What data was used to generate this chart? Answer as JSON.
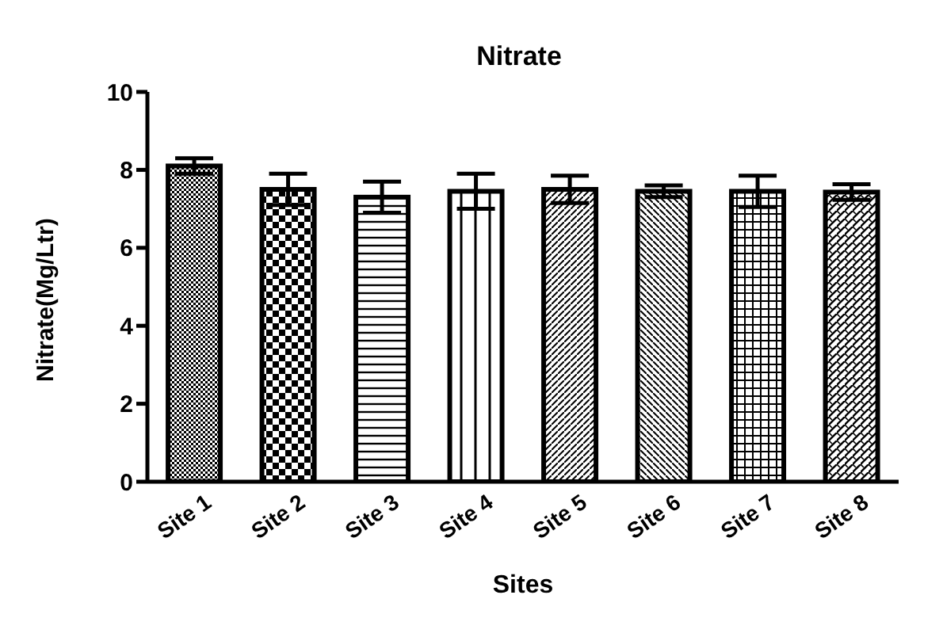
{
  "chart_data": {
    "type": "bar",
    "title": "Nitrate",
    "xlabel": "Sites",
    "ylabel": "Nitrate(Mg/Ltr)",
    "categories": [
      "Site 1",
      "Site 2",
      "Site 3",
      "Site 4",
      "Site 5",
      "Site 6",
      "Site 7",
      "Site 8"
    ],
    "values": [
      8.1,
      7.5,
      7.3,
      7.45,
      7.5,
      7.45,
      7.45,
      7.43
    ],
    "errors": [
      0.2,
      0.4,
      0.4,
      0.45,
      0.35,
      0.15,
      0.4,
      0.2
    ],
    "color": "#000000",
    "ylim": [
      0,
      10
    ],
    "yticks": [
      0,
      2,
      4,
      6,
      8,
      10
    ],
    "grid": false,
    "legend": false
  }
}
